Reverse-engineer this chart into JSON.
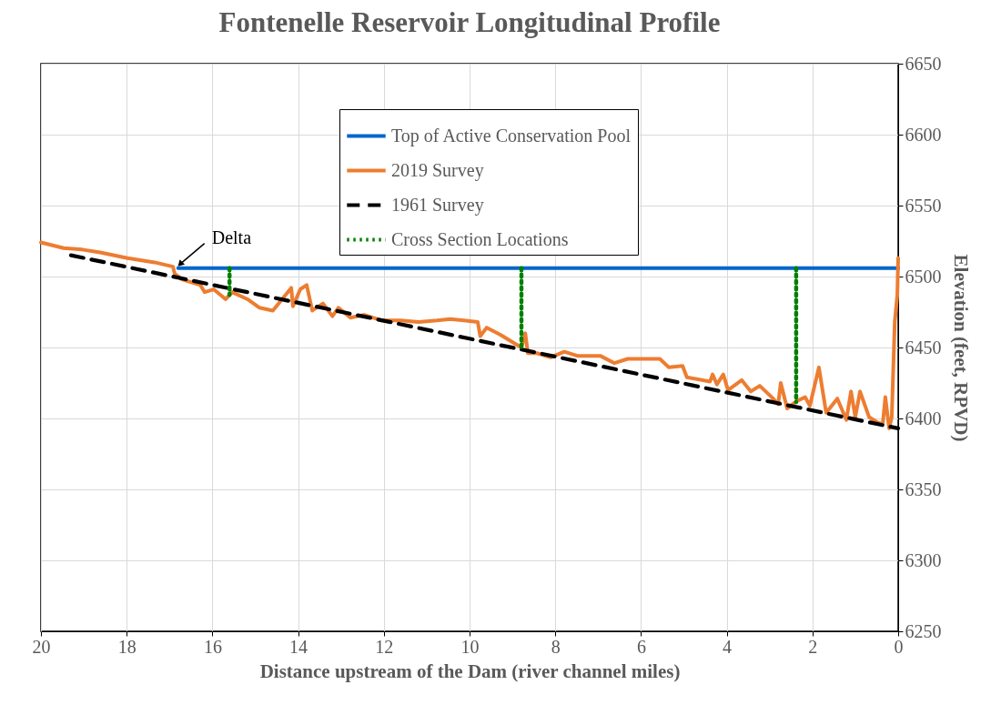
{
  "chart_data": {
    "type": "line",
    "title": "Fontenelle Reservoir Longitudinal Profile",
    "xlabel": "Distance upstream of the Dam (river channel miles)",
    "ylabel": "Elevation (feet, RPVD)",
    "xlim": [
      20,
      0
    ],
    "xticks": [
      20,
      18,
      16,
      14,
      12,
      10,
      8,
      6,
      4,
      2,
      0
    ],
    "ylim": [
      6250,
      6650
    ],
    "yticks": [
      6250,
      6300,
      6350,
      6400,
      6450,
      6500,
      6550,
      6600,
      6650
    ],
    "grid": true,
    "legend": "top",
    "marker": "none",
    "annotations": [
      {
        "text": "Delta",
        "x": 16.8,
        "y": 6506
      }
    ],
    "series": [
      {
        "name": "Top of Active Conservation Pool",
        "color": "#0066cc",
        "line_style": "solid",
        "x": [
          16.8,
          0
        ],
        "values": [
          6506,
          6506
        ]
      },
      {
        "name": "2019 Survey",
        "color": "#ed7d31",
        "line_style": "solid",
        "x": [
          20,
          19.47,
          19.04,
          18.62,
          17.98,
          17.35,
          16.92,
          16.88,
          16.71,
          16.28,
          16.18,
          15.97,
          15.69,
          15.54,
          15.18,
          14.9,
          14.59,
          14.16,
          14.12,
          13.95,
          13.8,
          13.67,
          13.42,
          13.2,
          13.06,
          12.78,
          12.46,
          12.04,
          11.61,
          11.19,
          10.76,
          10.45,
          10.13,
          9.81,
          9.75,
          9.6,
          9.28,
          8.96,
          8.79,
          8.7,
          8.64,
          8.43,
          8.11,
          7.79,
          7.47,
          6.94,
          6.62,
          6.31,
          5.88,
          5.56,
          5.35,
          5.03,
          4.93,
          4.39,
          4.33,
          4.23,
          4.08,
          3.97,
          3.65,
          3.44,
          3.23,
          2.95,
          2.8,
          2.74,
          2.59,
          2.38,
          2.17,
          2.06,
          1.85,
          1.68,
          1.42,
          1.21,
          1.1,
          1.0,
          0.89,
          0.68,
          0.47,
          0.36,
          0.3,
          0.21,
          0.15,
          0.08,
          0.02,
          0.0
        ],
        "values": [
          6524,
          6520,
          6519,
          6517,
          6513,
          6510,
          6507,
          6502,
          6498,
          6494,
          6489,
          6491,
          6484,
          6489,
          6484,
          6478,
          6476,
          6492,
          6479,
          6491,
          6494,
          6476,
          6481,
          6472,
          6478,
          6471,
          6473,
          6469,
          6469,
          6468,
          6469,
          6470,
          6469,
          6468,
          6458,
          6464,
          6459,
          6453,
          6450,
          6460,
          6446,
          6446,
          6443,
          6447,
          6444,
          6444,
          6439,
          6442,
          6442,
          6442,
          6436,
          6437,
          6429,
          6426,
          6431,
          6424,
          6431,
          6420,
          6427,
          6419,
          6423,
          6415,
          6410,
          6425,
          6407,
          6412,
          6415,
          6409,
          6436,
          6404,
          6414,
          6399,
          6419,
          6401,
          6419,
          6401,
          6397,
          6396,
          6415,
          6393,
          6401,
          6468,
          6487,
          6513
        ]
      },
      {
        "name": "1961 Survey",
        "color": "#000000",
        "line_style": "dashed",
        "x": [
          19.3,
          0
        ],
        "values": [
          6515,
          6393
        ]
      },
      {
        "name": "Cross Section Locations",
        "color": "#008000",
        "line_style": "dotted",
        "x": [
          15.6,
          15.6,
          null,
          8.79,
          8.79,
          null,
          2.38,
          2.38
        ],
        "values": [
          6506,
          6487,
          null,
          6506,
          6450,
          null,
          6506,
          6411.5
        ]
      }
    ]
  }
}
